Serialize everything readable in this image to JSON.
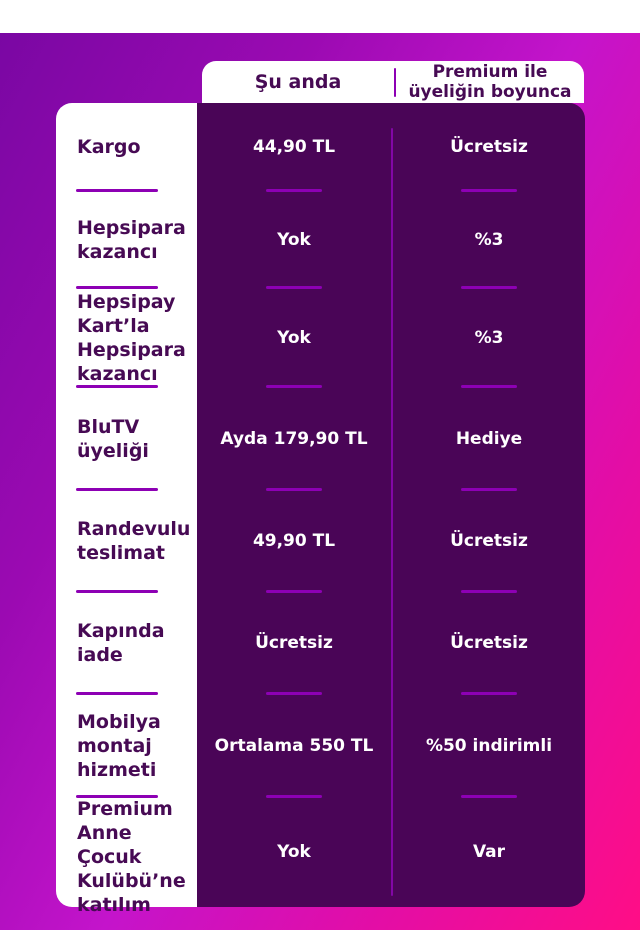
{
  "header": {
    "col_current": "Şu anda",
    "col_premium": "Premium ile\nüyeliğin boyunca"
  },
  "rows": [
    {
      "label": "Kargo",
      "current": "44,90 TL",
      "premium": "Ücretsiz"
    },
    {
      "label": "Hepsipara\nkazancı",
      "current": "Yok",
      "premium": "%3"
    },
    {
      "label": "Hepsipay\nKart’la\nHepsipara\nkazancı",
      "current": "Yok",
      "premium": "%3"
    },
    {
      "label": "BluTV\nüyeliği",
      "current": "Ayda 179,90 TL",
      "premium": "Hediye"
    },
    {
      "label": "Randevulu\nteslimat",
      "current": "49,90 TL",
      "premium": "Ücretsiz"
    },
    {
      "label": "Kapında\niade",
      "current": "Ücretsiz",
      "premium": "Ücretsiz"
    },
    {
      "label": "Mobilya\nmontaj\nhizmeti",
      "current": "Ortalama 550 TL",
      "premium": "%50 indirimli"
    },
    {
      "label": "Premium\nAnne Çocuk\nKulübü’ne\nkatılım",
      "current": "Yok",
      "premium": "Var"
    }
  ],
  "colors": {
    "background_gradient_start": "#7a07a3",
    "background_gradient_mid": "#c414cb",
    "background_gradient_end": "#ff0d86",
    "panel_dark": "#4a0557",
    "panel_light": "#ffffff",
    "label_text": "#470a54",
    "value_text": "#ffffff",
    "divider": "#8d00b4",
    "top_strip": "#ffffff"
  }
}
